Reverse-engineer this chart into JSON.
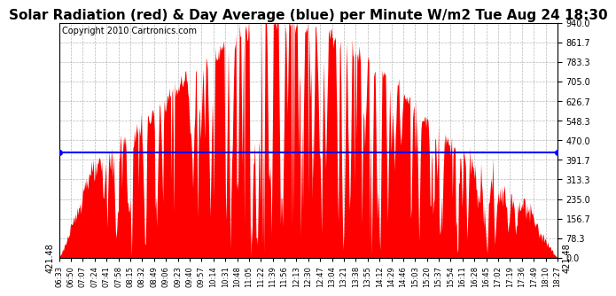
{
  "title": "Solar Radiation (red) & Day Average (blue) per Minute W/m2 Tue Aug 24 18:30",
  "copyright": "Copyright 2010 Cartronics.com",
  "y_min": 0.0,
  "y_max": 940.0,
  "y_ticks": [
    0.0,
    78.3,
    156.7,
    235.0,
    313.3,
    391.7,
    470.0,
    548.3,
    626.7,
    705.0,
    783.3,
    861.7,
    940.0
  ],
  "day_average": 421.48,
  "bar_color": "#FF0000",
  "avg_line_color": "#0000FF",
  "bg_color": "#FFFFFF",
  "grid_color": "#888888",
  "x_tick_labels": [
    "06:33",
    "06:50",
    "07:07",
    "07:24",
    "07:41",
    "07:58",
    "08:15",
    "08:32",
    "08:49",
    "09:06",
    "09:23",
    "09:40",
    "09:57",
    "10:14",
    "10:31",
    "10:48",
    "11:05",
    "11:22",
    "11:39",
    "11:56",
    "12:13",
    "12:30",
    "12:47",
    "13:04",
    "13:21",
    "13:38",
    "13:55",
    "14:12",
    "14:29",
    "14:46",
    "15:03",
    "15:20",
    "15:37",
    "15:54",
    "16:11",
    "16:28",
    "16:45",
    "17:02",
    "17:19",
    "17:36",
    "17:49",
    "18:10",
    "18:27"
  ],
  "title_fontsize": 11,
  "copyright_fontsize": 7
}
